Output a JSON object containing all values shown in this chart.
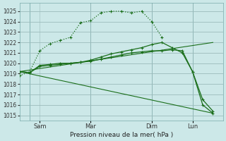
{
  "background_color": "#cce8e8",
  "grid_color": "#b0c8c8",
  "line_color": "#1a6e1a",
  "ylim": [
    1014.5,
    1025.8
  ],
  "yticks": [
    1015,
    1016,
    1017,
    1018,
    1019,
    1020,
    1021,
    1022,
    1023,
    1024,
    1025
  ],
  "xlabel": "Pression niveau de la mer( hPa )",
  "xtick_labels": [
    "Sam",
    "Mar",
    "Dim",
    "Lun"
  ],
  "xtick_positions": [
    2,
    7,
    13,
    17
  ],
  "vlines": [
    1,
    7,
    13,
    17
  ],
  "xlim": [
    0,
    20
  ],
  "series_dotted": {
    "x": [
      0,
      1,
      2,
      3,
      4,
      5,
      6,
      7,
      8,
      9,
      10,
      11,
      12,
      13,
      14
    ],
    "y": [
      1018.8,
      1019.2,
      1021.2,
      1021.9,
      1022.2,
      1022.5,
      1023.9,
      1024.1,
      1024.85,
      1025.0,
      1025.0,
      1024.85,
      1025.0,
      1024.0,
      1022.5
    ]
  },
  "series_solid1": {
    "x": [
      0,
      1,
      2,
      3,
      4,
      5,
      6,
      7,
      8,
      9,
      10,
      11,
      12,
      13,
      14,
      15,
      16,
      17,
      18,
      19
    ],
    "y": [
      1019.2,
      1019.1,
      1019.7,
      1019.8,
      1019.9,
      1020.0,
      1020.1,
      1020.2,
      1020.4,
      1020.6,
      1020.8,
      1021.0,
      1021.1,
      1021.2,
      1021.2,
      1021.3,
      1021.2,
      1019.2,
      1016.0,
      1015.2
    ]
  },
  "series_solid2": {
    "x": [
      0,
      1,
      2,
      3,
      4,
      5,
      6,
      7,
      8,
      9,
      10,
      11,
      12,
      13,
      14,
      15,
      16,
      17,
      18,
      19
    ],
    "y": [
      1019.2,
      1019.1,
      1019.8,
      1019.9,
      1020.0,
      1020.0,
      1020.1,
      1020.3,
      1020.6,
      1020.9,
      1021.1,
      1021.3,
      1021.5,
      1021.8,
      1022.0,
      1021.5,
      1021.0,
      1019.2,
      1016.5,
      1015.4
    ]
  },
  "series_line1": {
    "x": [
      0,
      19
    ],
    "y": [
      1019.2,
      1022.0
    ]
  },
  "series_line2": {
    "x": [
      0,
      19
    ],
    "y": [
      1019.2,
      1015.2
    ]
  }
}
